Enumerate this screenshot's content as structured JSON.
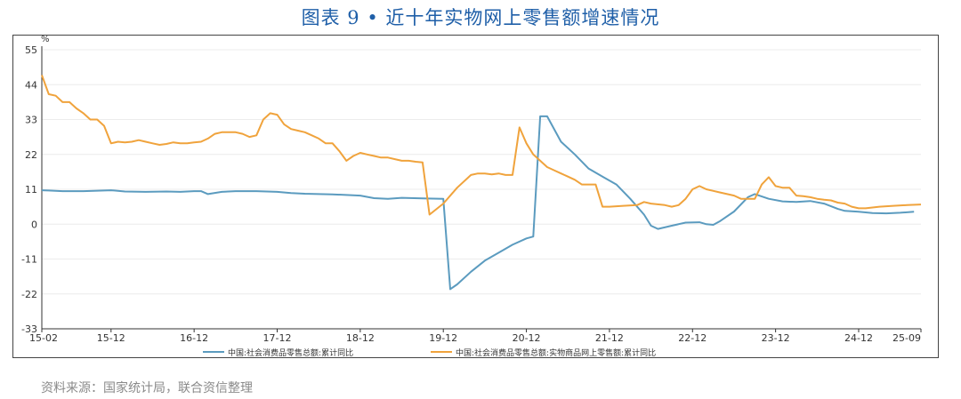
{
  "title": "图表 9 • 近十年实物网上零售额增速情况",
  "source": "资料来源：国家统计局，联合资信整理",
  "colors": {
    "series1": "#5b9bbf",
    "series2": "#f0a33c",
    "axis": "#333333",
    "grid": "#ececec"
  },
  "chart_data": {
    "type": "line",
    "ylabel": "%",
    "ylim": [
      -33,
      55
    ],
    "yticks": [
      55,
      44,
      33,
      22,
      11,
      0,
      -11,
      -22,
      -33
    ],
    "xtick_labels": [
      "15-02",
      "15-12",
      "16-12",
      "17-12",
      "18-12",
      "19-12",
      "20-12",
      "21-12",
      "22-12",
      "23-12",
      "24-12",
      "25-09"
    ],
    "xtick_positions": [
      0,
      10,
      22,
      34,
      46,
      58,
      70,
      82,
      94,
      106,
      118,
      127
    ],
    "x_count": 128,
    "grid": true,
    "legend_position": "bottom",
    "series": [
      {
        "name": "中国:社会消费品零售总额:累计同比",
        "color": "#5b9bbf",
        "points": [
          [
            0,
            10.7
          ],
          [
            1,
            10.6
          ],
          [
            3,
            10.4
          ],
          [
            6,
            10.4
          ],
          [
            9,
            10.6
          ],
          [
            10,
            10.7
          ],
          [
            12,
            10.3
          ],
          [
            15,
            10.2
          ],
          [
            18,
            10.3
          ],
          [
            20,
            10.2
          ],
          [
            22,
            10.4
          ],
          [
            23,
            10.4
          ],
          [
            24,
            9.5
          ],
          [
            26,
            10.2
          ],
          [
            28,
            10.4
          ],
          [
            31,
            10.4
          ],
          [
            34,
            10.2
          ],
          [
            36,
            9.8
          ],
          [
            38,
            9.6
          ],
          [
            42,
            9.4
          ],
          [
            46,
            9.0
          ],
          [
            48,
            8.2
          ],
          [
            50,
            8.0
          ],
          [
            52,
            8.3
          ],
          [
            55,
            8.1
          ],
          [
            58,
            8.0
          ],
          [
            59,
            -20.5
          ],
          [
            60,
            -19.0
          ],
          [
            62,
            -15.0
          ],
          [
            64,
            -11.5
          ],
          [
            66,
            -9.0
          ],
          [
            68,
            -6.5
          ],
          [
            70,
            -4.5
          ],
          [
            71,
            -3.9
          ],
          [
            72,
            34.0
          ],
          [
            73,
            34.0
          ],
          [
            75,
            26.0
          ],
          [
            77,
            22.0
          ],
          [
            79,
            17.5
          ],
          [
            81,
            15.0
          ],
          [
            83,
            12.5
          ],
          [
            85,
            8.0
          ],
          [
            87,
            3.0
          ],
          [
            88,
            -0.5
          ],
          [
            89,
            -1.5
          ],
          [
            91,
            -0.5
          ],
          [
            93,
            0.5
          ],
          [
            95,
            0.6
          ],
          [
            96,
            0.0
          ],
          [
            97,
            -0.2
          ],
          [
            98,
            1.0
          ],
          [
            100,
            4.0
          ],
          [
            102,
            8.5
          ],
          [
            103,
            9.5
          ],
          [
            105,
            8.0
          ],
          [
            107,
            7.2
          ],
          [
            109,
            7.0
          ],
          [
            111,
            7.3
          ],
          [
            113,
            6.5
          ],
          [
            115,
            4.8
          ],
          [
            116,
            4.2
          ],
          [
            118,
            3.9
          ],
          [
            120,
            3.5
          ],
          [
            122,
            3.4
          ],
          [
            124,
            3.6
          ],
          [
            126,
            3.9
          ],
          [
            128,
            4.2
          ],
          [
            130,
            4.8
          ],
          [
            132,
            5.0
          ],
          [
            134,
            4.8
          ],
          [
            136,
            4.5
          ]
        ]
      },
      {
        "name": "中国:社会消费品零售总额:实物商品网上零售额:累计同比",
        "color": "#f0a33c",
        "points": [
          [
            0,
            47.0
          ],
          [
            1,
            41.0
          ],
          [
            2,
            40.5
          ],
          [
            3,
            38.5
          ],
          [
            4,
            38.5
          ],
          [
            5,
            36.5
          ],
          [
            6,
            35.0
          ],
          [
            7,
            33.0
          ],
          [
            8,
            33.0
          ],
          [
            9,
            31.0
          ],
          [
            10,
            25.5
          ],
          [
            11,
            26.0
          ],
          [
            12,
            25.8
          ],
          [
            13,
            26.0
          ],
          [
            14,
            26.5
          ],
          [
            15,
            26.0
          ],
          [
            16,
            25.5
          ],
          [
            17,
            25.0
          ],
          [
            18,
            25.3
          ],
          [
            19,
            25.8
          ],
          [
            20,
            25.5
          ],
          [
            21,
            25.5
          ],
          [
            22,
            25.8
          ],
          [
            23,
            26.0
          ],
          [
            24,
            27.0
          ],
          [
            25,
            28.5
          ],
          [
            26,
            29.0
          ],
          [
            27,
            29.0
          ],
          [
            28,
            29.0
          ],
          [
            29,
            28.5
          ],
          [
            30,
            27.5
          ],
          [
            31,
            28.0
          ],
          [
            32,
            33.0
          ],
          [
            33,
            35.0
          ],
          [
            34,
            34.5
          ],
          [
            35,
            31.5
          ],
          [
            36,
            30.0
          ],
          [
            37,
            29.5
          ],
          [
            38,
            29.0
          ],
          [
            39,
            28.0
          ],
          [
            40,
            27.0
          ],
          [
            41,
            25.5
          ],
          [
            42,
            25.5
          ],
          [
            43,
            23.0
          ],
          [
            44,
            20.0
          ],
          [
            45,
            21.5
          ],
          [
            46,
            22.5
          ],
          [
            47,
            22.0
          ],
          [
            48,
            21.5
          ],
          [
            49,
            21.0
          ],
          [
            50,
            21.0
          ],
          [
            51,
            20.5
          ],
          [
            52,
            20.0
          ],
          [
            53,
            20.0
          ],
          [
            54,
            19.7
          ],
          [
            55,
            19.5
          ],
          [
            56,
            3.0
          ],
          [
            58,
            6.5
          ],
          [
            60,
            11.5
          ],
          [
            62,
            15.5
          ],
          [
            63,
            16.0
          ],
          [
            64,
            16.0
          ],
          [
            65,
            15.7
          ],
          [
            66,
            16.0
          ],
          [
            67,
            15.5
          ],
          [
            68,
            15.5
          ],
          [
            69,
            30.5
          ],
          [
            70,
            25.5
          ],
          [
            71,
            22.0
          ],
          [
            72,
            20.0
          ],
          [
            73,
            18.0
          ],
          [
            74,
            17.0
          ],
          [
            75,
            16.0
          ],
          [
            76,
            15.0
          ],
          [
            77,
            14.0
          ],
          [
            78,
            12.5
          ],
          [
            79,
            12.5
          ],
          [
            80,
            12.5
          ],
          [
            81,
            5.5
          ],
          [
            82,
            5.5
          ],
          [
            84,
            5.8
          ],
          [
            86,
            6.0
          ],
          [
            87,
            7.0
          ],
          [
            88,
            6.5
          ],
          [
            90,
            6.0
          ],
          [
            91,
            5.5
          ],
          [
            92,
            6.0
          ],
          [
            93,
            8.0
          ],
          [
            94,
            11.0
          ],
          [
            95,
            12.0
          ],
          [
            96,
            11.0
          ],
          [
            97,
            10.5
          ],
          [
            98,
            10.0
          ],
          [
            99,
            9.5
          ],
          [
            100,
            9.0
          ],
          [
            101,
            8.0
          ],
          [
            102,
            8.0
          ],
          [
            103,
            8.0
          ],
          [
            104,
            12.5
          ],
          [
            105,
            14.8
          ],
          [
            106,
            12.0
          ],
          [
            107,
            11.5
          ],
          [
            108,
            11.5
          ],
          [
            109,
            9.0
          ],
          [
            110,
            8.8
          ],
          [
            111,
            8.5
          ],
          [
            112,
            8.0
          ],
          [
            113,
            7.7
          ],
          [
            114,
            7.5
          ],
          [
            115,
            6.8
          ],
          [
            116,
            6.5
          ],
          [
            117,
            5.5
          ],
          [
            118,
            5.0
          ],
          [
            119,
            5.0
          ],
          [
            121,
            5.5
          ],
          [
            123,
            5.8
          ],
          [
            125,
            6.0
          ],
          [
            127,
            6.2
          ]
        ]
      }
    ]
  }
}
